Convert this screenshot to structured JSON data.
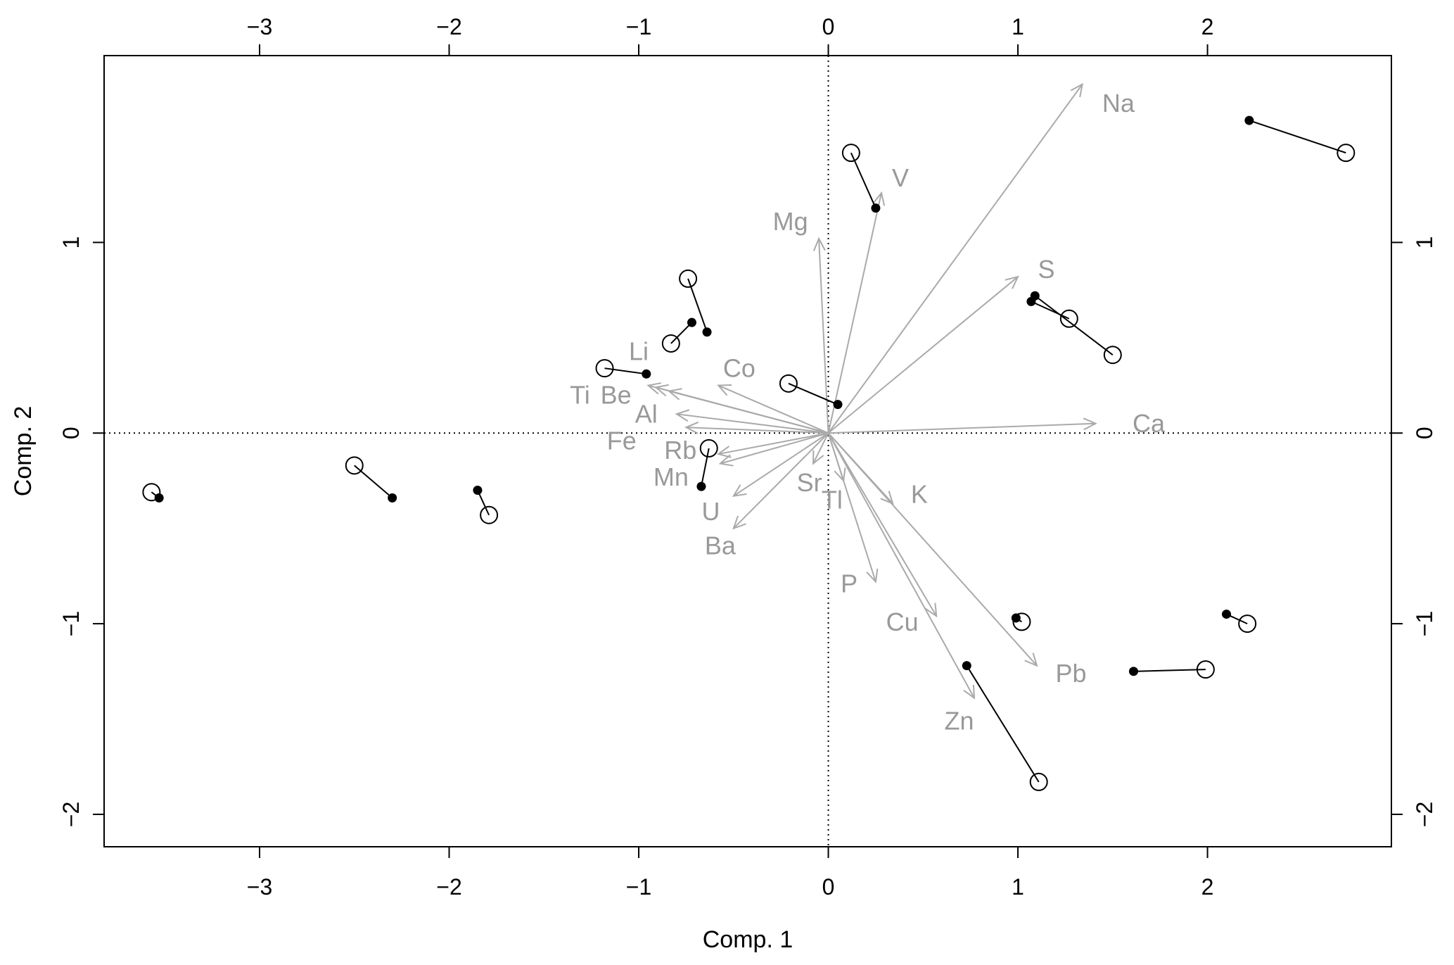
{
  "chart_data": {
    "type": "scatter",
    "title": "",
    "xlabel": "Comp. 1",
    "ylabel": "Comp. 2",
    "xlim": [
      -3.82,
      2.97
    ],
    "ylim": [
      -2.17,
      1.98
    ],
    "x_ticks": [
      -3,
      -2,
      -1,
      0,
      1,
      2
    ],
    "y_ticks": [
      -2,
      -1,
      0,
      1
    ],
    "x_tick_labels": [
      "−3",
      "−2",
      "−1",
      "0",
      "1",
      "2"
    ],
    "y_tick_labels": [
      "−2",
      "−1",
      "0",
      "1"
    ],
    "reference_lines": {
      "x": 0,
      "y": 0,
      "style": "dotted"
    },
    "grid": false,
    "legend": "none",
    "colors": {
      "points": "#000000",
      "vectors": "#aaaaaa",
      "labels": "#999999"
    },
    "point_pairs": [
      {
        "open": [
          -3.57,
          -0.31
        ],
        "filled": [
          -3.53,
          -0.34
        ]
      },
      {
        "open": [
          -2.5,
          -0.17
        ],
        "filled": [
          -2.3,
          -0.34
        ]
      },
      {
        "open": [
          -1.79,
          -0.43
        ],
        "filled": [
          -1.85,
          -0.3
        ]
      },
      {
        "open": [
          -0.74,
          0.81
        ],
        "filled": [
          -0.64,
          0.53
        ]
      },
      {
        "open": [
          -0.83,
          0.47
        ],
        "filled": [
          -0.72,
          0.58
        ]
      },
      {
        "open": [
          -1.18,
          0.34
        ],
        "filled": [
          -0.96,
          0.31
        ]
      },
      {
        "open": [
          -0.63,
          -0.08
        ],
        "filled": [
          -0.67,
          -0.28
        ]
      },
      {
        "open": [
          -0.21,
          0.26
        ],
        "filled": [
          0.05,
          0.15
        ]
      },
      {
        "open": [
          0.12,
          1.47
        ],
        "filled": [
          0.25,
          1.18
        ]
      },
      {
        "open": [
          1.27,
          0.6
        ],
        "filled": [
          1.07,
          0.69
        ]
      },
      {
        "open": [
          1.5,
          0.41
        ],
        "filled": [
          1.09,
          0.72
        ]
      },
      {
        "open": [
          2.73,
          1.47
        ],
        "filled": [
          2.22,
          1.64
        ]
      },
      {
        "open": [
          1.02,
          -0.99
        ],
        "filled": [
          0.99,
          -0.97
        ]
      },
      {
        "open": [
          2.21,
          -1.0
        ],
        "filled": [
          2.1,
          -0.95
        ]
      },
      {
        "open": [
          1.99,
          -1.24
        ],
        "filled": [
          1.61,
          -1.25
        ]
      },
      {
        "open": [
          1.11,
          -1.83
        ],
        "filled": [
          0.73,
          -1.22
        ]
      }
    ],
    "vectors": [
      {
        "name": "Na",
        "end": [
          1.34,
          1.83
        ],
        "label": [
          1.53,
          1.73
        ]
      },
      {
        "name": "V",
        "end": [
          0.28,
          1.26
        ],
        "label": [
          0.38,
          1.34
        ]
      },
      {
        "name": "Mg",
        "end": [
          -0.05,
          1.02
        ],
        "label": [
          -0.2,
          1.11
        ]
      },
      {
        "name": "S",
        "end": [
          1.0,
          0.82
        ],
        "label": [
          1.15,
          0.86
        ]
      },
      {
        "name": "Ca",
        "end": [
          1.41,
          0.05
        ],
        "label": [
          1.69,
          0.05
        ]
      },
      {
        "name": "Li",
        "end": [
          -0.91,
          0.24
        ],
        "label": [
          -1.0,
          0.43
        ]
      },
      {
        "name": "Co",
        "end": [
          -0.58,
          0.25
        ],
        "label": [
          -0.47,
          0.34
        ]
      },
      {
        "name": "Ti",
        "end": [
          -0.95,
          0.25
        ],
        "label": [
          -1.31,
          0.2
        ]
      },
      {
        "name": "Be",
        "end": [
          -0.84,
          0.22
        ],
        "label": [
          -1.12,
          0.2
        ]
      },
      {
        "name": "Al",
        "end": [
          -0.8,
          0.1
        ],
        "label": [
          -0.96,
          0.1
        ]
      },
      {
        "name": "Fe",
        "end": [
          -0.75,
          0.03
        ],
        "label": [
          -1.09,
          -0.04
        ]
      },
      {
        "name": "Rb",
        "end": [
          -0.58,
          -0.11
        ],
        "label": [
          -0.78,
          -0.09
        ]
      },
      {
        "name": "Mn",
        "end": [
          -0.57,
          -0.16
        ],
        "label": [
          -0.83,
          -0.23
        ]
      },
      {
        "name": "U",
        "end": [
          -0.5,
          -0.33
        ],
        "label": [
          -0.62,
          -0.41
        ]
      },
      {
        "name": "Ba",
        "end": [
          -0.5,
          -0.5
        ],
        "label": [
          -0.57,
          -0.59
        ]
      },
      {
        "name": "Sr",
        "end": [
          -0.08,
          -0.16
        ],
        "label": [
          -0.1,
          -0.26
        ]
      },
      {
        "name": "Tl",
        "end": [
          0.08,
          -0.25
        ],
        "label": [
          0.02,
          -0.35
        ]
      },
      {
        "name": "K",
        "end": [
          0.34,
          -0.37
        ],
        "label": [
          0.48,
          -0.32
        ]
      },
      {
        "name": "P",
        "end": [
          0.25,
          -0.78
        ],
        "label": [
          0.11,
          -0.79
        ]
      },
      {
        "name": "Cu",
        "end": [
          0.57,
          -0.96
        ],
        "label": [
          0.39,
          -0.99
        ]
      },
      {
        "name": "Pb",
        "end": [
          1.1,
          -1.22
        ],
        "label": [
          1.28,
          -1.26
        ]
      },
      {
        "name": "Zn",
        "end": [
          0.77,
          -1.39
        ],
        "label": [
          0.69,
          -1.51
        ]
      }
    ]
  }
}
